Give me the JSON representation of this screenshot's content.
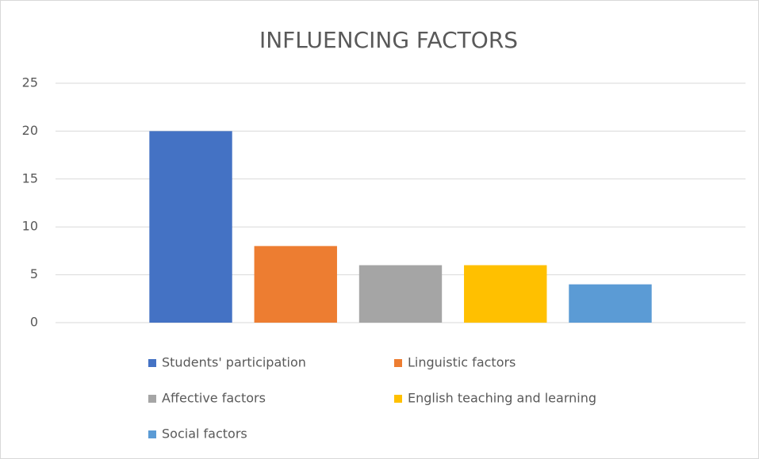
{
  "chart_data": {
    "type": "bar",
    "title": "INFLUENCING FACTORS",
    "categories": [
      null
    ],
    "series": [
      {
        "name": "Students' participation",
        "color": "#4472c4",
        "values": [
          20
        ]
      },
      {
        "name": "Linguistic factors",
        "color": "#ed7d31",
        "values": [
          8
        ]
      },
      {
        "name": "Affective factors",
        "color": "#a5a5a5",
        "values": [
          6
        ]
      },
      {
        "name": "English teaching and learning",
        "color": "#ffc000",
        "values": [
          6
        ]
      },
      {
        "name": "Social factors",
        "color": "#5b9bd5",
        "values": [
          4
        ]
      }
    ],
    "ylim": [
      0,
      25
    ],
    "yticks": [
      0,
      5,
      10,
      15,
      20,
      25
    ],
    "grid": true,
    "legend": "bottom"
  }
}
